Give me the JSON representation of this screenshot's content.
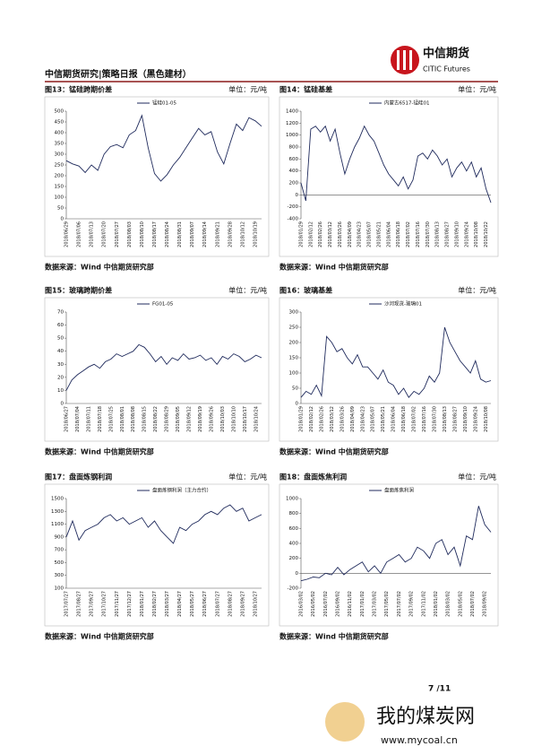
{
  "header": {
    "title": "中信期货研究|策略日报（黑色建材）",
    "logo_cn": "中信期货",
    "logo_en": "CITIC Futures"
  },
  "page_number": "7 /11",
  "watermark": {
    "name": "我的煤炭网",
    "url": "www.mycoal.cn"
  },
  "chart_data": [
    {
      "type": "line",
      "title": "图13：锰硅跨期价差",
      "unit": "单位：元/吨",
      "source": "数据来源：Wind  中信期货研究部",
      "categories": [
        "2018/06/29",
        null,
        "2018/07/06",
        null,
        "2018/07/13",
        null,
        "2018/07/20",
        null,
        "2018/07/27",
        null,
        "2018/08/03",
        null,
        "2018/08/10",
        null,
        "2018/08/17",
        null,
        "2018/08/24",
        null,
        "2018/08/31",
        null,
        "2018/09/07",
        null,
        "2018/09/14",
        null,
        "2018/09/21",
        null,
        "2018/09/28",
        null,
        "2018/10/12",
        null,
        "2018/10/19",
        null
      ],
      "series": [
        {
          "name": "锰硅01-05",
          "color": "#1f2a5c",
          "values": [
            270,
            255,
            245,
            215,
            250,
            225,
            300,
            335,
            345,
            330,
            390,
            410,
            480,
            330,
            210,
            175,
            205,
            250,
            285,
            330,
            375,
            420,
            390,
            405,
            310,
            255,
            350,
            440,
            410,
            470,
            455,
            430
          ]
        }
      ],
      "ylim": [
        0,
        500
      ],
      "yticks": [
        0,
        50,
        100,
        150,
        200,
        250,
        300,
        350,
        400,
        450,
        500
      ]
    },
    {
      "type": "line",
      "title": "图14：锰硅基差",
      "unit": "单位：元/吨",
      "source": "数据来源：Wind  中信期货研究部",
      "categories": [
        "2018/01/29",
        null,
        "2018/02/12",
        null,
        "2018/02/26",
        null,
        "2018/03/12",
        null,
        "2018/03/26",
        null,
        "2018/04/09",
        null,
        "2018/04/23",
        null,
        "2018/05/07",
        null,
        "2018/05/21",
        null,
        "2018/06/04",
        null,
        "2018/06/18",
        null,
        "2018/07/02",
        null,
        "2018/07/16",
        null,
        "2018/07/30",
        null,
        "2018/08/13",
        null,
        "2018/08/27",
        null,
        "2018/09/10",
        null,
        "2018/09/24",
        null,
        "2018/10/08",
        null,
        "2018/10/22",
        null
      ],
      "series": [
        {
          "name": "内蒙古6517-锰硅01",
          "color": "#1f2a5c",
          "values": [
            200,
            -100,
            1100,
            1150,
            1050,
            1150,
            900,
            1100,
            700,
            350,
            600,
            800,
            950,
            1150,
            1000,
            900,
            700,
            500,
            350,
            250,
            150,
            300,
            100,
            250,
            650,
            700,
            600,
            750,
            650,
            500,
            600,
            300,
            450,
            550,
            400,
            550,
            300,
            450,
            100,
            -130
          ]
        }
      ],
      "ylim": [
        -400,
        1400
      ],
      "yticks": [
        -400,
        -200,
        0,
        200,
        400,
        600,
        800,
        1000,
        1200,
        1400
      ]
    },
    {
      "type": "line",
      "title": "图15：玻璃跨期价差",
      "unit": "单位：元/吨",
      "source": "数据来源：Wind  中信期货研究部",
      "categories": [
        "2018/06/27",
        null,
        "2018/07/04",
        null,
        "2018/07/11",
        null,
        "2018/07/18",
        null,
        "2018/07/25",
        null,
        "2018/08/01",
        null,
        "2018/08/08",
        null,
        "2018/08/15",
        null,
        "2018/08/22",
        null,
        "2018/08/29",
        null,
        "2018/09/05",
        null,
        "2018/09/12",
        null,
        "2018/09/19",
        null,
        "2018/09/26",
        null,
        "2018/10/03",
        null,
        "2018/10/10",
        null,
        "2018/10/17",
        null,
        "2018/10/24",
        null
      ],
      "series": [
        {
          "name": "FG01-05",
          "color": "#1f2a5c",
          "values": [
            10,
            18,
            22,
            25,
            28,
            30,
            27,
            32,
            34,
            38,
            36,
            38,
            40,
            45,
            43,
            38,
            32,
            36,
            30,
            35,
            33,
            38,
            34,
            35,
            37,
            33,
            35,
            30,
            36,
            34,
            38,
            36,
            32,
            34,
            37,
            35
          ]
        }
      ],
      "ylim": [
        0,
        70
      ],
      "yticks": [
        0,
        10,
        20,
        30,
        40,
        50,
        60,
        70
      ]
    },
    {
      "type": "line",
      "title": "图16：玻璃基差",
      "unit": "单位：元/吨",
      "source": "数据来源：Wind  中信期货研究部",
      "categories": [
        "2018/01/29",
        null,
        "2018/02/12",
        null,
        "2018/02/26",
        null,
        "2018/03/12",
        null,
        "2018/03/26",
        null,
        "2018/04/09",
        null,
        "2018/04/23",
        null,
        "2018/05/07",
        null,
        "2018/05/21",
        null,
        "2018/06/04",
        null,
        "2018/06/18",
        null,
        "2018/07/02",
        null,
        "2018/07/16",
        null,
        "2018/07/30",
        null,
        "2018/08/13",
        null,
        "2018/08/27",
        null,
        "2018/09/10",
        null,
        "2018/09/24",
        null,
        "2018/10/08",
        null
      ],
      "series": [
        {
          "name": "沙河现货-玻璃01",
          "color": "#1f2a5c",
          "values": [
            20,
            40,
            30,
            60,
            25,
            220,
            200,
            170,
            180,
            150,
            130,
            160,
            120,
            120,
            100,
            80,
            110,
            70,
            60,
            30,
            50,
            20,
            40,
            30,
            50,
            90,
            70,
            100,
            250,
            200,
            170,
            140,
            120,
            100,
            140,
            80,
            70,
            75
          ]
        }
      ],
      "ylim": [
        0,
        300
      ],
      "yticks": [
        0,
        50,
        100,
        150,
        200,
        250,
        300
      ]
    },
    {
      "type": "line",
      "title": "图17：盘面炼钢利润",
      "unit": "单位：元/吨",
      "source": "数据来源：Wind  中信期货研究部",
      "categories": [
        "2017/07/27",
        null,
        "2017/08/27",
        null,
        "2017/09/27",
        null,
        "2017/10/27",
        null,
        "2017/11/27",
        null,
        "2017/12/27",
        null,
        "2018/01/27",
        null,
        "2018/02/27",
        null,
        "2018/03/27",
        null,
        "2018/04/27",
        null,
        "2018/05/27",
        null,
        "2018/06/27",
        null,
        "2018/07/27",
        null,
        "2018/08/27",
        null,
        "2018/09/27",
        null,
        "2018/10/27",
        null
      ],
      "series": [
        {
          "name": "盘面炼钢利润（主力合约）",
          "color": "#1f2a5c",
          "values": [
            900,
            1150,
            850,
            1000,
            1050,
            1100,
            1200,
            1250,
            1150,
            1200,
            1100,
            1150,
            1200,
            1050,
            1150,
            1000,
            900,
            800,
            1050,
            1000,
            1100,
            1150,
            1250,
            1300,
            1250,
            1350,
            1400,
            1300,
            1350,
            1150,
            1200,
            1250
          ]
        }
      ],
      "ylim": [
        100,
        1500
      ],
      "yticks": [
        100,
        300,
        500,
        700,
        900,
        1100,
        1300,
        1500
      ]
    },
    {
      "type": "line",
      "title": "图18：盘面炼焦利润",
      "unit": "单位：元/吨",
      "source": "数据来源：Wind  中信期货研究部",
      "categories": [
        "2016/03/02",
        null,
        "2016/05/02",
        null,
        "2016/07/02",
        null,
        "2016/09/02",
        null,
        "2016/11/02",
        null,
        "2017/01/02",
        null,
        "2017/03/02",
        null,
        "2017/05/02",
        null,
        "2017/07/02",
        null,
        "2017/09/02",
        null,
        "2017/11/02",
        null,
        "2018/01/02",
        null,
        "2018/03/02",
        null,
        "2018/05/02",
        null,
        "2018/07/02",
        null,
        "2018/09/02",
        null
      ],
      "series": [
        {
          "name": "盘面炼焦利润",
          "color": "#1f2a5c",
          "values": [
            -100,
            -80,
            -50,
            -60,
            0,
            -20,
            80,
            -20,
            50,
            100,
            150,
            20,
            100,
            0,
            150,
            200,
            250,
            150,
            200,
            350,
            300,
            200,
            400,
            450,
            250,
            350,
            100,
            500,
            450,
            900,
            650,
            550
          ]
        }
      ],
      "ylim": [
        -200,
        1000
      ],
      "yticks": [
        -200,
        0,
        200,
        400,
        600,
        800,
        1000
      ]
    }
  ]
}
